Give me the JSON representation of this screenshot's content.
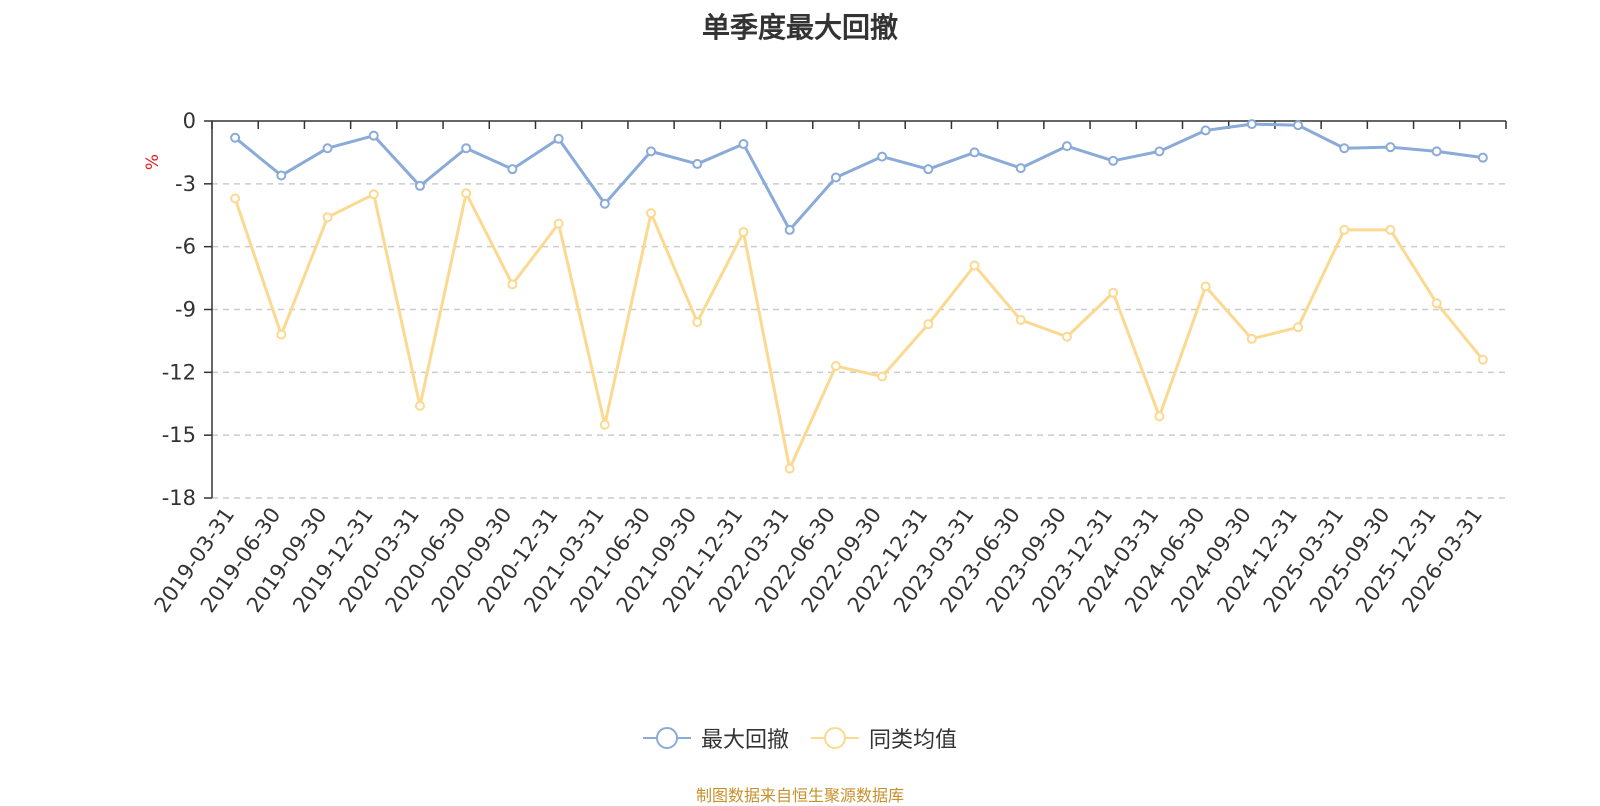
{
  "chart_data": {
    "type": "line",
    "title": "单季度最大回撤",
    "ylabel": "%",
    "ylim": [
      -18,
      0
    ],
    "yticks": [
      0,
      -3,
      -6,
      -9,
      -12,
      -15,
      -18
    ],
    "grid": true,
    "legend_position": "bottom",
    "categories": [
      "2019-03-31",
      "2019-06-30",
      "2019-09-30",
      "2019-12-31",
      "2020-03-31",
      "2020-06-30",
      "2020-09-30",
      "2020-12-31",
      "2021-03-31",
      "2021-06-30",
      "2021-09-30",
      "2021-12-31",
      "2022-03-31",
      "2022-06-30",
      "2022-09-30",
      "2022-12-31",
      "2023-03-31",
      "2023-06-30",
      "2023-09-30",
      "2023-12-31",
      "2024-03-31",
      "2024-06-30",
      "2024-09-30",
      "2024-12-31",
      "2025-03-31",
      "2025-09-30",
      "2025-12-31",
      "2026-03-31"
    ],
    "series": [
      {
        "name": "最大回撤",
        "color": "#8aaad8",
        "values": [
          -0.8,
          -2.6,
          -1.3,
          -0.7,
          -3.1,
          -1.3,
          -2.3,
          -0.85,
          -3.95,
          -1.45,
          -2.05,
          -1.1,
          -5.2,
          -2.7,
          -1.7,
          -2.3,
          -1.5,
          -2.25,
          -1.2,
          -1.9,
          -1.45,
          -0.45,
          -0.15,
          -0.2,
          -1.3,
          -1.25,
          -1.45,
          -1.75
        ]
      },
      {
        "name": "同类均值",
        "color": "#fcd990",
        "values": [
          -3.7,
          -10.2,
          -4.6,
          -3.5,
          -13.6,
          -3.45,
          -7.8,
          -4.9,
          -14.5,
          -4.4,
          -9.6,
          -5.3,
          -16.6,
          -11.7,
          -12.2,
          -9.7,
          -6.9,
          -9.5,
          -10.3,
          -8.2,
          -14.1,
          -7.9,
          -10.4,
          -9.85,
          -5.2,
          -5.2,
          -8.7,
          -11.4
        ]
      }
    ]
  },
  "footer": {
    "source": "制图数据来自恒生聚源数据库"
  }
}
